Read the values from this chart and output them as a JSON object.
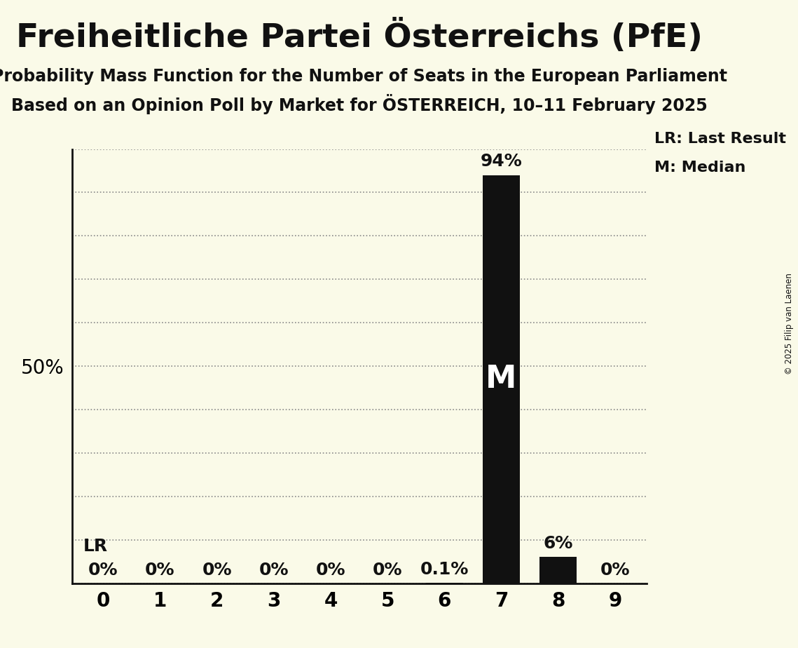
{
  "title": "Freiheitliche Partei Österreichs (PfE)",
  "subtitle1": "Probability Mass Function for the Number of Seats in the European Parliament",
  "subtitle2": "Based on an Opinion Poll by Market for ÖSTERREICH, 10–11 February 2025",
  "copyright": "© 2025 Filip van Laenen",
  "categories": [
    0,
    1,
    2,
    3,
    4,
    5,
    6,
    7,
    8,
    9
  ],
  "values": [
    0.0,
    0.0,
    0.0,
    0.0,
    0.0,
    0.0,
    0.001,
    0.94,
    0.06,
    0.0
  ],
  "bar_color": "#111111",
  "background_color": "#FAFAE8",
  "median": 7,
  "last_result": 7,
  "ylim": [
    0,
    1.0
  ],
  "yticks": [
    0.0,
    0.1,
    0.2,
    0.3,
    0.4,
    0.5,
    0.6,
    0.7,
    0.8,
    0.9,
    1.0
  ],
  "legend_lr": "LR: Last Result",
  "legend_m": "M: Median",
  "value_labels": [
    "0%",
    "0%",
    "0%",
    "0%",
    "0%",
    "0%",
    "0.1%",
    "94%",
    "6%",
    "0%"
  ],
  "title_fontsize": 34,
  "subtitle_fontsize": 17,
  "tick_fontsize": 20,
  "label_fontsize": 18,
  "legend_fontsize": 16,
  "bar_width": 0.65
}
